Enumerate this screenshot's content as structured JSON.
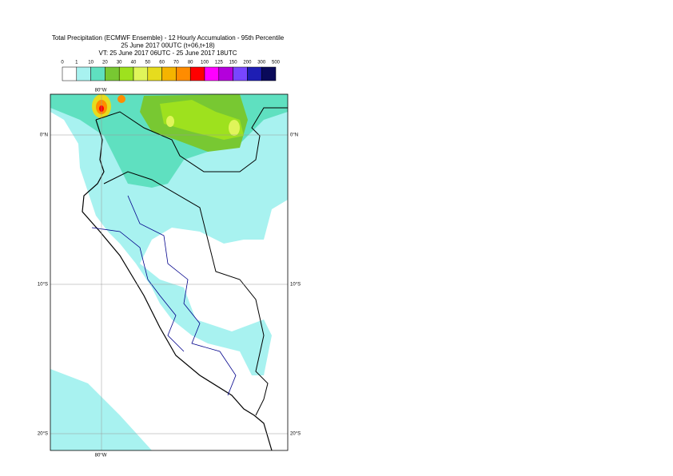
{
  "header": {
    "lines": [
      "Total Precipitation (ECMWF Ensemble) - 12 Hourly Accumulation - 95th Percentile",
      "25 June 2017 00UTC (t+06,t+18)",
      "VT: 25 June 2017 06UTC - 25 June 2017 18UTC"
    ]
  },
  "legend": {
    "labels": [
      0,
      1,
      10,
      20,
      30,
      40,
      50,
      60,
      70,
      80,
      100,
      125,
      150,
      200,
      300,
      500
    ],
    "colors": [
      "#ffffff",
      "#a8f2f0",
      "#5fe0c0",
      "#78c832",
      "#9ee11e",
      "#e0f55a",
      "#e6dc1e",
      "#f5b400",
      "#ff8c00",
      "#ff0000",
      "#ff00ff",
      "#b400dc",
      "#7846ff",
      "#1e1eb4",
      "#0a0a5a"
    ]
  },
  "map": {
    "lon_labels": [
      "80°W"
    ],
    "lat_labels": [
      "0°N",
      "10°S",
      "20°S"
    ]
  }
}
